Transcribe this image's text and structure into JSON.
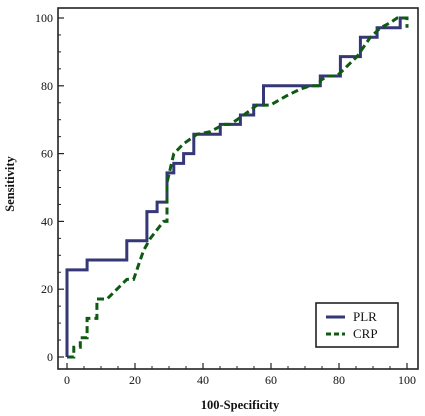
{
  "chart_data": {
    "type": "line",
    "xlabel": "100-Specificity",
    "ylabel": "Sensitivity",
    "xlim": [
      0,
      100
    ],
    "ylim": [
      0,
      100
    ],
    "xticks": [
      0,
      20,
      40,
      60,
      80,
      100
    ],
    "yticks": [
      0,
      20,
      40,
      60,
      80,
      100
    ],
    "xtick_labels": [
      "0",
      "20",
      "40",
      "60",
      "80",
      "100"
    ],
    "ytick_labels": [
      "0",
      "20",
      "40",
      "60",
      "80",
      "100"
    ],
    "legend_position": "bottom-right",
    "series": [
      {
        "name": "PLR",
        "color": "#363777",
        "style": "solid",
        "points": [
          [
            0,
            0
          ],
          [
            0,
            25.7
          ],
          [
            5.9,
            25.7
          ],
          [
            5.9,
            28.6
          ],
          [
            17.6,
            28.6
          ],
          [
            17.6,
            34.3
          ],
          [
            23.5,
            34.3
          ],
          [
            23.5,
            42.9
          ],
          [
            26.5,
            42.9
          ],
          [
            26.5,
            45.7
          ],
          [
            29.4,
            45.7
          ],
          [
            29.4,
            54.3
          ],
          [
            31.4,
            54.3
          ],
          [
            31.4,
            57.1
          ],
          [
            34.3,
            57.1
          ],
          [
            34.3,
            60
          ],
          [
            37.3,
            60
          ],
          [
            37.3,
            65.7
          ],
          [
            45.1,
            65.7
          ],
          [
            45.1,
            68.6
          ],
          [
            51,
            68.6
          ],
          [
            51,
            71.4
          ],
          [
            54.9,
            71.4
          ],
          [
            54.9,
            74.3
          ],
          [
            57.8,
            74.3
          ],
          [
            57.8,
            80
          ],
          [
            74.5,
            80
          ],
          [
            74.5,
            82.9
          ],
          [
            80.4,
            82.9
          ],
          [
            80.4,
            88.6
          ],
          [
            86.3,
            88.6
          ],
          [
            86.3,
            94.3
          ],
          [
            91.2,
            94.3
          ],
          [
            91.2,
            97.1
          ],
          [
            98,
            97.1
          ],
          [
            98,
            100
          ],
          [
            100,
            100
          ]
        ]
      },
      {
        "name": "CRP",
        "color": "#0e5a13",
        "style": "dashed",
        "points": [
          [
            0,
            0
          ],
          [
            2,
            0
          ],
          [
            2,
            2.9
          ],
          [
            3.9,
            2.9
          ],
          [
            3.9,
            5.7
          ],
          [
            5.9,
            5.7
          ],
          [
            5.9,
            11.4
          ],
          [
            8.8,
            11.4
          ],
          [
            8.8,
            17.1
          ],
          [
            11.8,
            17.1
          ],
          [
            17.6,
            22.9
          ],
          [
            19.6,
            22.9
          ],
          [
            22.5,
            31.4
          ],
          [
            24.5,
            35
          ],
          [
            28.4,
            40
          ],
          [
            29.4,
            40
          ],
          [
            29.4,
            51.4
          ],
          [
            31.4,
            60
          ],
          [
            34.3,
            62.9
          ],
          [
            38.2,
            65.7
          ],
          [
            42.2,
            66.5
          ],
          [
            46.1,
            68.6
          ],
          [
            48,
            68.6
          ],
          [
            52,
            71.4
          ],
          [
            55.9,
            74.3
          ],
          [
            59.8,
            74.3
          ],
          [
            64.7,
            77.1
          ],
          [
            68.6,
            79
          ],
          [
            71.6,
            80
          ],
          [
            74.5,
            80
          ],
          [
            74.5,
            81.5
          ],
          [
            76.5,
            82.9
          ],
          [
            79.4,
            82.9
          ],
          [
            85.3,
            88.6
          ],
          [
            89.2,
            94.3
          ],
          [
            92.2,
            97.1
          ],
          [
            95.1,
            98.6
          ],
          [
            97.1,
            100
          ],
          [
            100,
            100
          ],
          [
            100,
            97.1
          ]
        ]
      }
    ]
  }
}
